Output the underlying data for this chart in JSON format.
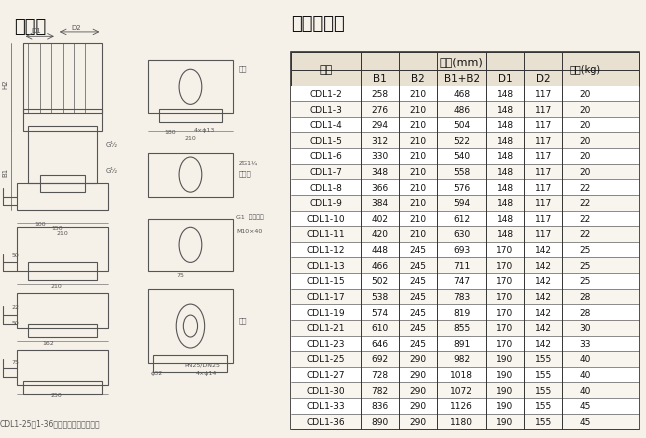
{
  "title_left": "安装图",
  "title_right": "尺寸和重量",
  "table_title": "尺寸(mm)",
  "weight_label": "重量(kg)",
  "model_label": "型号",
  "col_headers": [
    "B1",
    "B2",
    "B1+B2",
    "D1",
    "D2"
  ],
  "rows": [
    [
      "CDL1-2",
      258,
      210,
      468,
      148,
      117,
      20
    ],
    [
      "CDL1-3",
      276,
      210,
      486,
      148,
      117,
      20
    ],
    [
      "CDL1-4",
      294,
      210,
      504,
      148,
      117,
      20
    ],
    [
      "CDL1-5",
      312,
      210,
      522,
      148,
      117,
      20
    ],
    [
      "CDL1-6",
      330,
      210,
      540,
      148,
      117,
      20
    ],
    [
      "CDL1-7",
      348,
      210,
      558,
      148,
      117,
      20
    ],
    [
      "CDL1-8",
      366,
      210,
      576,
      148,
      117,
      22
    ],
    [
      "CDL1-9",
      384,
      210,
      594,
      148,
      117,
      22
    ],
    [
      "CDL1-10",
      402,
      210,
      612,
      148,
      117,
      22
    ],
    [
      "CDL1-11",
      420,
      210,
      630,
      148,
      117,
      22
    ],
    [
      "CDL1-12",
      448,
      245,
      693,
      170,
      142,
      25
    ],
    [
      "CDL1-13",
      466,
      245,
      711,
      170,
      142,
      25
    ],
    [
      "CDL1-15",
      502,
      245,
      747,
      170,
      142,
      25
    ],
    [
      "CDL1-17",
      538,
      245,
      783,
      170,
      142,
      28
    ],
    [
      "CDL1-19",
      574,
      245,
      819,
      170,
      142,
      28
    ],
    [
      "CDL1-21",
      610,
      245,
      855,
      170,
      142,
      30
    ],
    [
      "CDL1-23",
      646,
      245,
      891,
      170,
      142,
      33
    ],
    [
      "CDL1-25",
      692,
      290,
      982,
      190,
      155,
      40
    ],
    [
      "CDL1-27",
      728,
      290,
      1018,
      190,
      155,
      40
    ],
    [
      "CDL1-30",
      782,
      290,
      1072,
      190,
      155,
      40
    ],
    [
      "CDL1-33",
      836,
      290,
      1126,
      190,
      155,
      45
    ],
    [
      "CDL1-36",
      890,
      290,
      1180,
      190,
      155,
      45
    ]
  ],
  "footer_text": "CDL1-25～1-36无稚圆法兰型管路联接",
  "bg_color": "#f5f0e8",
  "table_bg": "#ffffff",
  "header_bg": "#e8e0d0",
  "border_color": "#333333",
  "text_color": "#111111"
}
